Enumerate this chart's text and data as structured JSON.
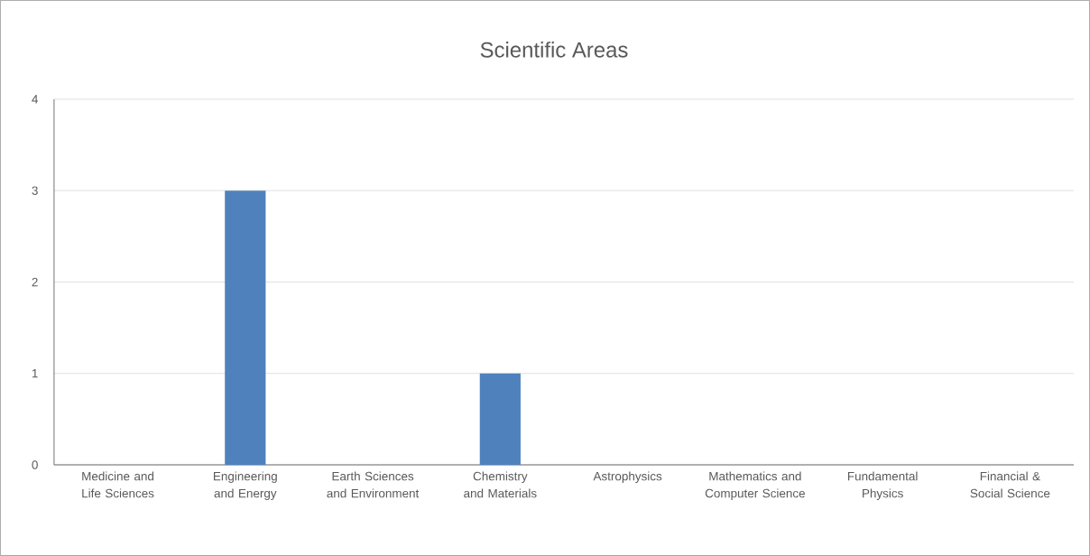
{
  "chart_data": {
    "type": "bar",
    "title": "Scientific Areas",
    "categories": [
      "Medicine and Life Sciences",
      "Engineering and Energy",
      "Earth Sciences and Environment",
      "Chemistry and Materials",
      "Astrophysics",
      "Mathematics and Computer Science",
      "Fundamental Physics",
      "Financial & Social Science"
    ],
    "values": [
      0,
      3,
      0,
      1,
      0,
      0,
      0,
      0
    ],
    "color": "#4f81bd",
    "ylim": [
      0,
      4
    ],
    "yticks": [
      0,
      1,
      2,
      3,
      4
    ],
    "grid": "y"
  }
}
